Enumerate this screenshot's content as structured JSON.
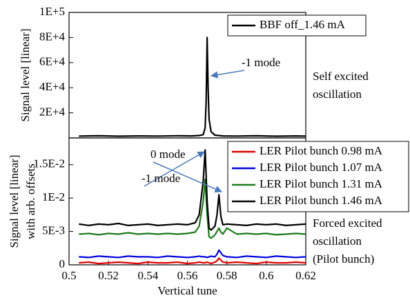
{
  "chart_data": [
    {
      "type": "line",
      "ylabel": [
        "Signal level [linear]"
      ],
      "side_note": [
        "Self excited",
        "oscillation"
      ],
      "annotations": [
        "-1 mode"
      ],
      "xlim": [
        0.5,
        0.62
      ],
      "ylim": [
        0,
        100000
      ],
      "yticks": [
        {
          "value": 20000,
          "label": "2E+4"
        },
        {
          "value": 40000,
          "label": "4E+4"
        },
        {
          "value": 60000,
          "label": "6E+4"
        },
        {
          "value": 80000,
          "label": "8E+4"
        },
        {
          "value": 100000,
          "label": "1E+5"
        }
      ],
      "legend": "upper right",
      "series": [
        {
          "name": "BBF off_1.46 mA",
          "color": "#000000",
          "x": [
            0.505,
            0.515,
            0.525,
            0.535,
            0.545,
            0.555,
            0.562,
            0.566,
            0.568,
            0.569,
            0.5695,
            0.57,
            0.5705,
            0.571,
            0.572,
            0.574,
            0.578,
            0.585,
            0.595,
            0.605,
            0.615,
            0.62
          ],
          "values": [
            1500,
            1700,
            1400,
            1600,
            1500,
            1700,
            1600,
            1900,
            2600,
            8000,
            30000,
            80000,
            40000,
            15000,
            5000,
            2200,
            1600,
            1500,
            1700,
            1400,
            1600,
            1500
          ]
        }
      ]
    },
    {
      "type": "line",
      "ylabel": [
        "Signal level [linear]",
        "with arb. offsets"
      ],
      "xlabel": "Vertical tune",
      "side_note": [
        "Forced excited",
        "oscillation",
        "(Pilot bunch)"
      ],
      "annotations": [
        "0 mode",
        "-1 mode"
      ],
      "xlim": [
        0.5,
        0.62
      ],
      "xticks": [
        0.5,
        0.52,
        0.54,
        0.56,
        0.58,
        0.6,
        0.62
      ],
      "ylim": [
        0,
        0.019
      ],
      "yticks": [
        0,
        {
          "value": 0.005,
          "label": "5E-3"
        },
        {
          "value": 0.01,
          "label": "1E-2"
        },
        {
          "value": 0.015,
          "label": "1.5E-2"
        }
      ],
      "legend": "upper right",
      "x": [
        0.505,
        0.51,
        0.515,
        0.52,
        0.525,
        0.53,
        0.535,
        0.54,
        0.545,
        0.55,
        0.555,
        0.56,
        0.564,
        0.566,
        0.568,
        0.569,
        0.57,
        0.571,
        0.572,
        0.574,
        0.575,
        0.576,
        0.577,
        0.578,
        0.58,
        0.585,
        0.59,
        0.595,
        0.6,
        0.605,
        0.61,
        0.615,
        0.62
      ],
      "series": [
        {
          "name": "LER Pilot bunch 0.98 mA",
          "color": "#e00000",
          "values": [
            0.0003,
            0.0004,
            0.0002,
            0.0003,
            0.0004,
            0.0003,
            0.0002,
            0.0004,
            0.0003,
            0.0003,
            0.0004,
            0.0002,
            0.0003,
            0.0004,
            0.0003,
            0.0003,
            0.0004,
            0.0003,
            0.0002,
            0.0004,
            0.0006,
            0.001,
            0.0007,
            0.0004,
            0.0003,
            0.0004,
            0.0003,
            0.0002,
            0.0004,
            0.0003,
            0.0003,
            0.0004,
            0.0003
          ]
        },
        {
          "name": "LER Pilot bunch 1.07 mA",
          "color": "#0000e0",
          "values": [
            0.0012,
            0.0011,
            0.0013,
            0.0012,
            0.0011,
            0.0013,
            0.0012,
            0.0012,
            0.0011,
            0.0013,
            0.0012,
            0.0011,
            0.0012,
            0.0013,
            0.0012,
            0.0012,
            0.0011,
            0.0012,
            0.0013,
            0.0012,
            0.0016,
            0.0022,
            0.0018,
            0.0014,
            0.0012,
            0.0011,
            0.0013,
            0.0012,
            0.0011,
            0.0013,
            0.0012,
            0.0011,
            0.0012
          ]
        },
        {
          "name": "LER Pilot bunch 1.31 mA",
          "color": "#1a7a1a",
          "values": [
            0.0046,
            0.0047,
            0.0045,
            0.0047,
            0.0046,
            0.0048,
            0.0046,
            0.0047,
            0.0046,
            0.0047,
            0.0046,
            0.0047,
            0.0049,
            0.0058,
            0.0095,
            0.0128,
            0.0075,
            0.0042,
            0.004,
            0.0045,
            0.005,
            0.0055,
            0.0049,
            0.0046,
            0.0055,
            0.0046,
            0.0047,
            0.0046,
            0.0047,
            0.0045,
            0.0046,
            0.0047,
            0.0046
          ]
        },
        {
          "name": "LER Pilot bunch 1.46 mA",
          "color": "#000000",
          "values": [
            0.0061,
            0.0059,
            0.0061,
            0.006,
            0.0062,
            0.0059,
            0.006,
            0.0061,
            0.0059,
            0.006,
            0.0061,
            0.006,
            0.0063,
            0.0075,
            0.0125,
            0.0172,
            0.0095,
            0.0055,
            0.0052,
            0.0058,
            0.0075,
            0.0105,
            0.0072,
            0.006,
            0.0061,
            0.006,
            0.0059,
            0.0061,
            0.006,
            0.0061,
            0.0059,
            0.006,
            0.0061
          ]
        }
      ]
    }
  ]
}
